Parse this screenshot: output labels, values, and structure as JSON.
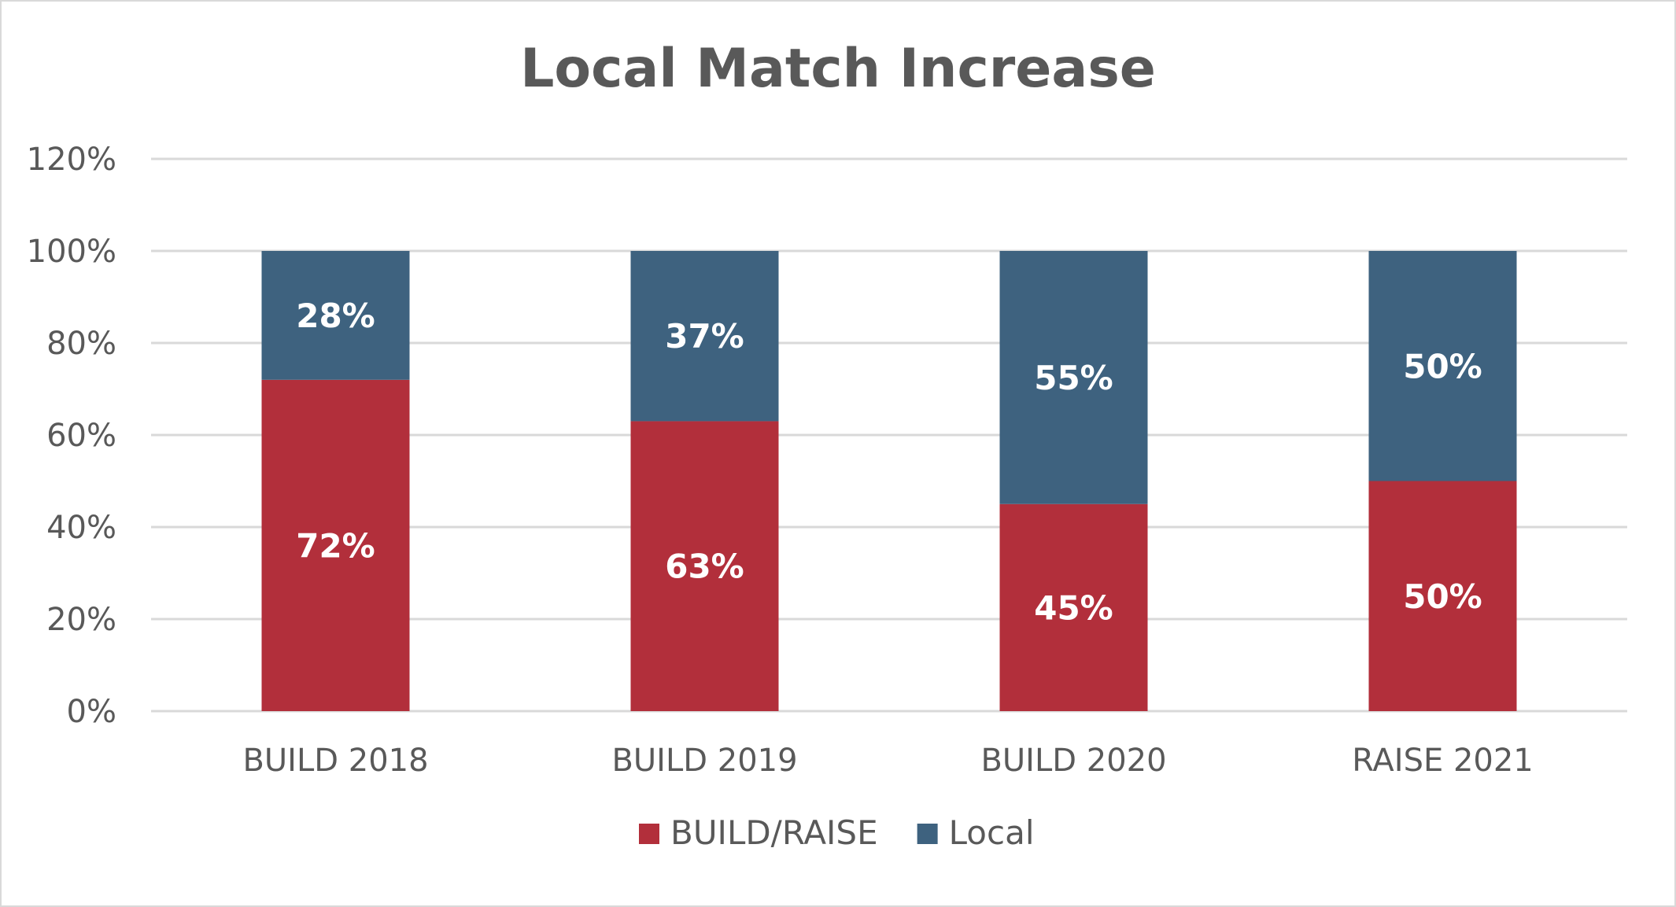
{
  "chart_data": {
    "type": "bar",
    "stacked": true,
    "title": "Local Match Increase",
    "categories": [
      "BUILD 2018",
      "BUILD 2019",
      "BUILD 2020",
      "RAISE 2021"
    ],
    "series": [
      {
        "name": "BUILD/RAISE",
        "values": [
          72,
          63,
          45,
          50
        ],
        "labels": [
          "72%",
          "63%",
          "45%",
          "50%"
        ],
        "color": "#b22f3b"
      },
      {
        "name": "Local",
        "values": [
          28,
          37,
          55,
          50
        ],
        "labels": [
          "28%",
          "37%",
          "55%",
          "50%"
        ],
        "color": "#3e627f"
      }
    ],
    "ylim": [
      0,
      120
    ],
    "yticks": [
      0,
      20,
      40,
      60,
      80,
      100,
      120
    ],
    "ytick_labels": [
      "0%",
      "20%",
      "40%",
      "60%",
      "80%",
      "100%",
      "120%"
    ],
    "grid": true,
    "legend_position": "bottom"
  }
}
